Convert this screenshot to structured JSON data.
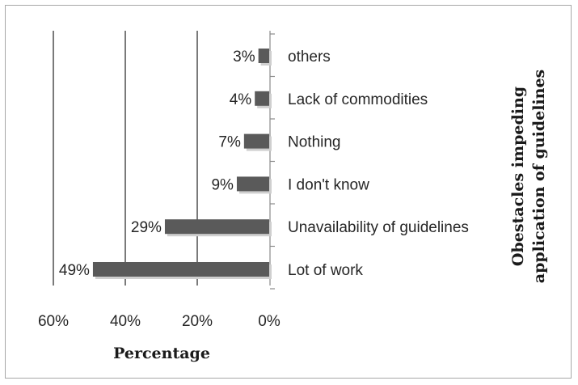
{
  "chart_data": {
    "type": "bar",
    "orientation": "horizontal",
    "x_reversed": true,
    "categories": [
      "Lot of work",
      "Unavailability of guidelines",
      "I don't know",
      "Nothing",
      "Lack of  commodities",
      "others"
    ],
    "values": [
      49,
      29,
      9,
      7,
      4,
      3
    ],
    "data_labels": [
      "49%",
      "29%",
      "9%",
      "7%",
      "4%",
      "3%"
    ],
    "xlabel": "Percentage",
    "ylabel": "Obestacles impeding application of guidelines",
    "ylabel_lines": [
      "Obestacles impeding",
      "application of guidelines"
    ],
    "xlim": [
      0,
      60
    ],
    "x_ticks": [
      60,
      40,
      20,
      0
    ],
    "x_tick_labels": [
      "60%",
      "40%",
      "20%",
      "0%"
    ],
    "grid": "vertical",
    "bar_color": "#5a5a5a",
    "gridline_color": "#333333"
  }
}
